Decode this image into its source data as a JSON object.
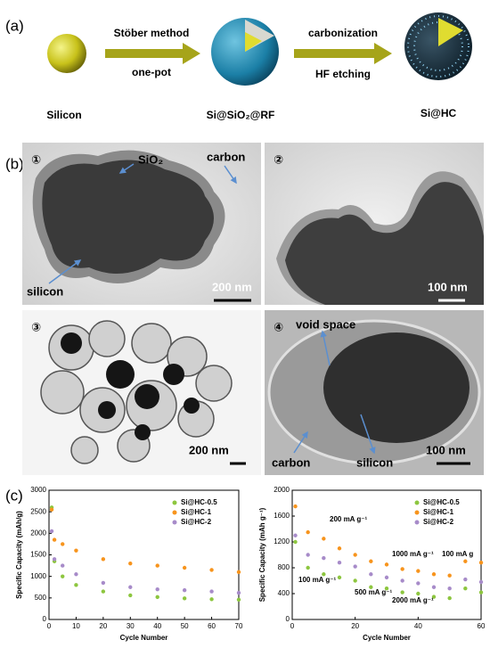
{
  "panel_a": {
    "label": "(a)",
    "steps": [
      "Silicon",
      "Si@SiO₂@RF",
      "Si@HC"
    ],
    "arrows": [
      {
        "top": "Stöber method",
        "bottom": "one-pot"
      },
      {
        "top": "carbonization",
        "bottom": "HF etching"
      }
    ]
  },
  "panel_b": {
    "label": "(b)",
    "images": [
      {
        "number": "①",
        "annotations": [
          "SiO₂",
          "carbon",
          "silicon"
        ],
        "scale": "200 nm"
      },
      {
        "number": "②",
        "annotations": [],
        "scale": "100 nm"
      },
      {
        "number": "③",
        "annotations": [],
        "scale": "200 nm"
      },
      {
        "number": "④",
        "annotations": [
          "void space",
          "carbon",
          "silicon"
        ],
        "scale": "100 nm"
      }
    ]
  },
  "panel_c_label": "(c)",
  "chart_data": [
    {
      "type": "scatter",
      "xlabel": "Cycle Number",
      "ylabel": "Specific Capacity (mAh/g)",
      "x": [
        1,
        2,
        5,
        10,
        20,
        30,
        40,
        50,
        60,
        70
      ],
      "xlim": [
        0,
        70
      ],
      "xticks": [
        0,
        10,
        20,
        30,
        40,
        50,
        60,
        70
      ],
      "ylim": [
        0,
        3000
      ],
      "yticks": [
        0,
        500,
        1000,
        1500,
        2000,
        2500,
        3000
      ],
      "legend": "upper right",
      "series": [
        {
          "name": "Si@HC-0.5",
          "color": "#8dc63f",
          "values": [
            2600,
            1350,
            1000,
            800,
            650,
            560,
            520,
            490,
            470,
            460
          ]
        },
        {
          "name": "Si@HC-1",
          "color": "#f7941d",
          "values": [
            2550,
            1850,
            1750,
            1600,
            1400,
            1300,
            1250,
            1200,
            1150,
            1100
          ]
        },
        {
          "name": "Si@HC-2",
          "color": "#a78bc9",
          "values": [
            2050,
            1400,
            1250,
            1050,
            850,
            750,
            700,
            680,
            650,
            620
          ]
        }
      ],
      "annotations": []
    },
    {
      "type": "scatter",
      "xlabel": "Cycle Number",
      "ylabel": "Specific Capacity (mAh g⁻¹)",
      "x": [
        1,
        5,
        10,
        15,
        20,
        25,
        30,
        35,
        40,
        45,
        50,
        55,
        60
      ],
      "xlim": [
        0,
        60
      ],
      "xticks": [
        0,
        20,
        40,
        60
      ],
      "ylim": [
        0,
        2000
      ],
      "yticks": [
        0,
        400,
        800,
        1200,
        1600,
        2000
      ],
      "legend": "upper right",
      "series": [
        {
          "name": "Si@HC-0.5",
          "color": "#8dc63f",
          "values": [
            1200,
            800,
            700,
            650,
            600,
            500,
            480,
            420,
            400,
            350,
            330,
            480,
            420
          ]
        },
        {
          "name": "Si@HC-1",
          "color": "#f7941d",
          "values": [
            1750,
            1350,
            1250,
            1100,
            1000,
            900,
            850,
            780,
            750,
            700,
            680,
            900,
            880
          ]
        },
        {
          "name": "Si@HC-2",
          "color": "#a78bc9",
          "values": [
            1300,
            1000,
            950,
            880,
            820,
            700,
            650,
            600,
            560,
            500,
            480,
            620,
            580
          ]
        }
      ],
      "annotations": [
        "200 mA g⁻¹",
        "1000 mA g⁻¹",
        "100 mA g⁻¹",
        "100 mA g",
        "500 mA g⁻¹",
        "2000 mA g⁻¹"
      ]
    }
  ]
}
